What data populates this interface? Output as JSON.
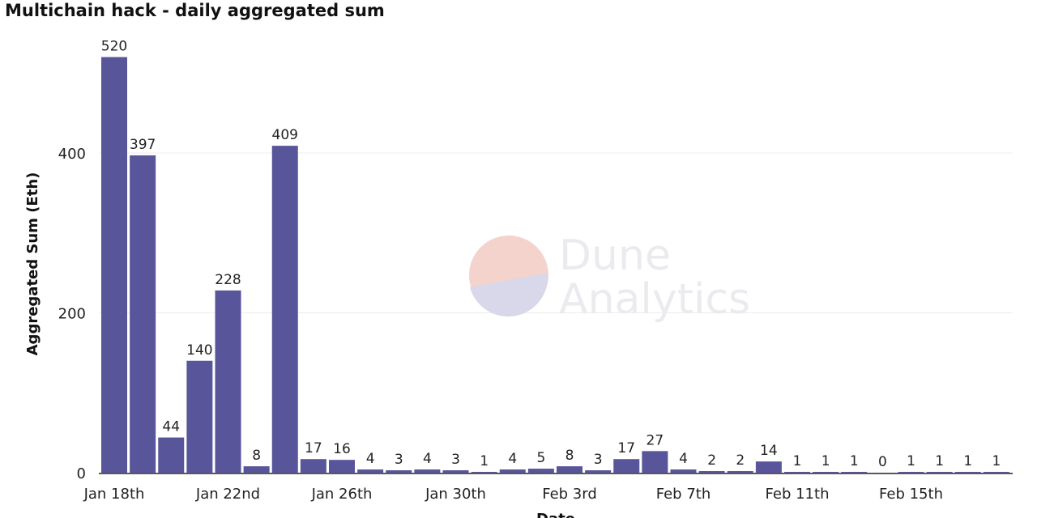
{
  "chart_data": {
    "type": "bar",
    "title": "Multichain hack - daily aggregated sum",
    "xlabel": "Date",
    "ylabel": "Aggregated Sum (Eth)",
    "ylim": [
      0,
      530
    ],
    "yticks": [
      0,
      200,
      400
    ],
    "grid": "horizontal",
    "legend": "none",
    "bar_color": "#58559a",
    "categories": [
      "2022-01-18",
      "2022-01-19",
      "2022-01-20",
      "2022-01-21",
      "2022-01-22",
      "2022-01-23",
      "2022-01-24",
      "2022-01-25",
      "2022-01-26",
      "2022-01-27",
      "2022-01-28",
      "2022-01-29",
      "2022-01-30",
      "2022-01-31",
      "2022-02-01",
      "2022-02-02",
      "2022-02-03",
      "2022-02-04",
      "2022-02-05",
      "2022-02-06",
      "2022-02-07",
      "2022-02-08",
      "2022-02-09",
      "2022-02-10",
      "2022-02-11",
      "2022-02-12",
      "2022-02-13",
      "2022-02-14",
      "2022-02-15",
      "2022-02-16",
      "2022-02-17",
      "2022-02-18"
    ],
    "values": [
      520,
      397,
      44,
      140,
      228,
      8,
      409,
      17,
      16,
      4,
      3,
      4,
      3,
      1,
      4,
      5,
      8,
      3,
      17,
      27,
      4,
      2,
      2,
      14,
      1,
      1,
      1,
      0,
      1,
      1,
      1,
      1
    ],
    "x_tick_labels": [
      "Jan 18th",
      "Jan 22nd",
      "Jan 26th",
      "Jan 30th",
      "Feb 3rd",
      "Feb 7th",
      "Feb 11th",
      "Feb 15th"
    ]
  },
  "watermark": {
    "line1": "Dune",
    "line2": "Analytics",
    "colors": [
      "#f4d3cc",
      "#d8d8ea"
    ]
  }
}
